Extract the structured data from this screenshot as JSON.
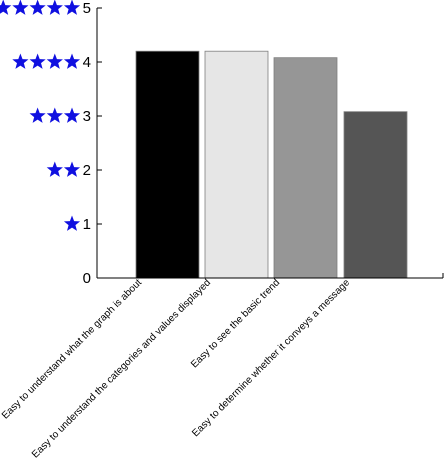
{
  "chart_data": {
    "type": "bar",
    "title": "",
    "xlabel": "",
    "ylabel": "",
    "ylim": [
      0,
      5
    ],
    "yticks": [
      0,
      1,
      2,
      3,
      4,
      5
    ],
    "ytick_labels": [
      "0",
      "1",
      "2",
      "3",
      "4",
      "5"
    ],
    "ytick_star_counts": [
      0,
      1,
      2,
      3,
      4,
      5
    ],
    "star_color": "#1010e0",
    "categories": [
      "Easy to understand what the graph is about",
      "Easy to understand the categories and values displayed",
      "Easy to see the basic trend",
      "Easy to determine whether it conveys a message"
    ],
    "values": [
      4.2,
      4.2,
      4.08,
      3.08
    ],
    "bar_colors": [
      "#000000",
      "#e6e6e6",
      "#969696",
      "#555555"
    ],
    "grid": false,
    "legend": "none"
  }
}
